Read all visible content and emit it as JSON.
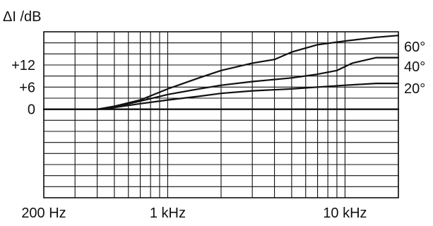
{
  "chart_data": {
    "type": "line",
    "ylabel": "ΔI /dB",
    "xscale": "log",
    "xlim": [
      200,
      20000
    ],
    "ylim": [
      -24,
      21
    ],
    "y_ticks": [
      {
        "value": 12,
        "label": "+12"
      },
      {
        "value": 6,
        "label": "+6"
      },
      {
        "value": 0,
        "label": "0"
      }
    ],
    "x_ticks": [
      {
        "value": 200,
        "label": "200 Hz"
      },
      {
        "value": 1000,
        "label": "1 kHz"
      },
      {
        "value": 10000,
        "label": "10 kHz"
      }
    ],
    "grid": true,
    "series": [
      {
        "name": "60°",
        "x": [
          200,
          400,
          500,
          700,
          1000,
          1500,
          2000,
          3000,
          4000,
          5000,
          7000,
          10000,
          15000,
          20000
        ],
        "y": [
          0,
          0,
          0.8,
          2.5,
          5.5,
          8.5,
          10.5,
          12.5,
          13.5,
          15.5,
          17.5,
          18.5,
          19.5,
          20
        ]
      },
      {
        "name": "40°",
        "x": [
          200,
          400,
          500,
          700,
          1000,
          1500,
          2000,
          3000,
          5000,
          7000,
          9000,
          11000,
          15000,
          20000
        ],
        "y": [
          0,
          0,
          0.6,
          2.2,
          4,
          5.5,
          6.5,
          7.5,
          8.5,
          9.5,
          10.5,
          12.5,
          14,
          14
        ]
      },
      {
        "name": "20°",
        "x": [
          200,
          400,
          500,
          700,
          1000,
          1500,
          2000,
          3000,
          5000,
          7000,
          10000,
          15000,
          20000
        ],
        "y": [
          0,
          0,
          0.5,
          1.5,
          2.5,
          3.5,
          4.3,
          5,
          5.5,
          6,
          6.5,
          7,
          7
        ]
      },
      {
        "name": "",
        "x": [
          200,
          20000
        ],
        "y": [
          0,
          0
        ]
      }
    ]
  }
}
